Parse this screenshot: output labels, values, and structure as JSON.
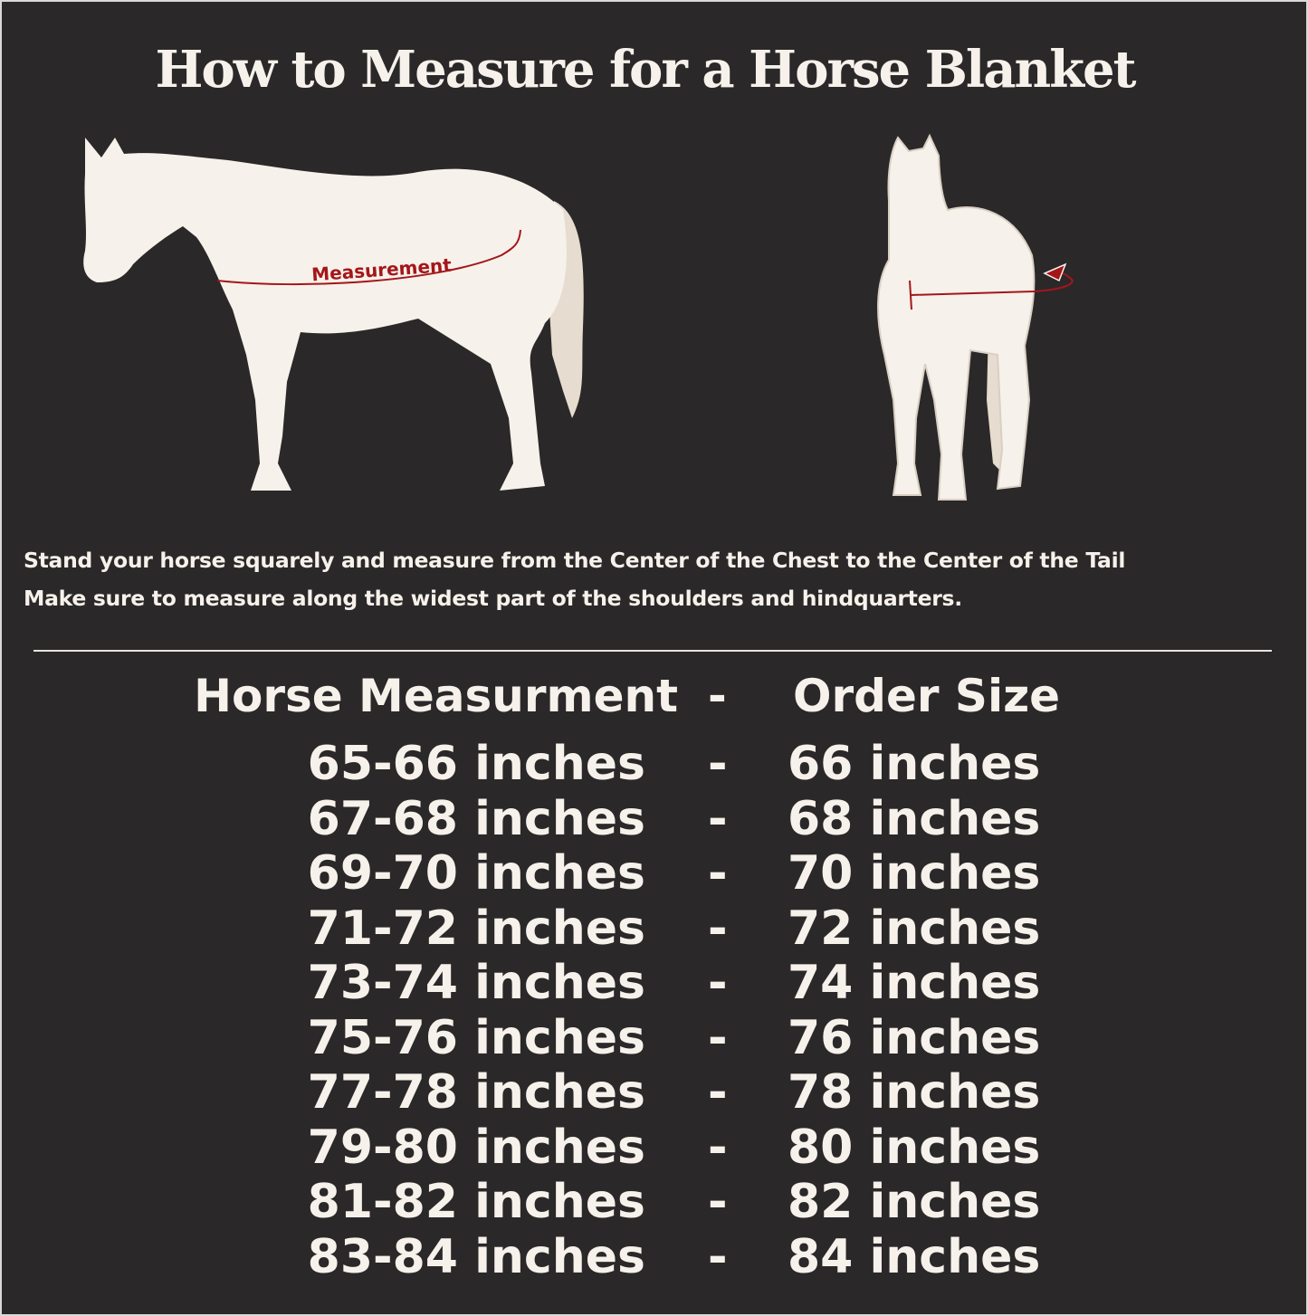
{
  "title": "How to Measure for a Horse Blanket",
  "diagram": {
    "label": "Measurement",
    "accent_color": "#a4161a",
    "horse_color": "#f6f1ea",
    "background_color": "#2a2829"
  },
  "instructions": [
    "Stand your horse squarely and measure from the Center of the Chest to the Center of the Tail",
    "Make sure to measure along the widest part of the shoulders and hindquarters."
  ],
  "table": {
    "header": {
      "measurement": "Horse Measurment",
      "separator": "-",
      "size": "Order Size"
    },
    "rows": [
      {
        "measurement": "65-66 inches",
        "separator": "-",
        "size": "66 inches"
      },
      {
        "measurement": "67-68 inches",
        "separator": "-",
        "size": "68 inches"
      },
      {
        "measurement": "69-70 inches",
        "separator": "-",
        "size": "70 inches"
      },
      {
        "measurement": "71-72 inches",
        "separator": "-",
        "size": "72 inches"
      },
      {
        "measurement": "73-74 inches",
        "separator": "-",
        "size": "74 inches"
      },
      {
        "measurement": "75-76 inches",
        "separator": "-",
        "size": "76 inches"
      },
      {
        "measurement": "77-78 inches",
        "separator": "-",
        "size": "78 inches"
      },
      {
        "measurement": "79-80 inches",
        "separator": "-",
        "size": "80 inches"
      },
      {
        "measurement": "81-82 inches",
        "separator": "-",
        "size": "82 inches"
      },
      {
        "measurement": "83-84 inches",
        "separator": "-",
        "size": "84 inches"
      }
    ]
  }
}
